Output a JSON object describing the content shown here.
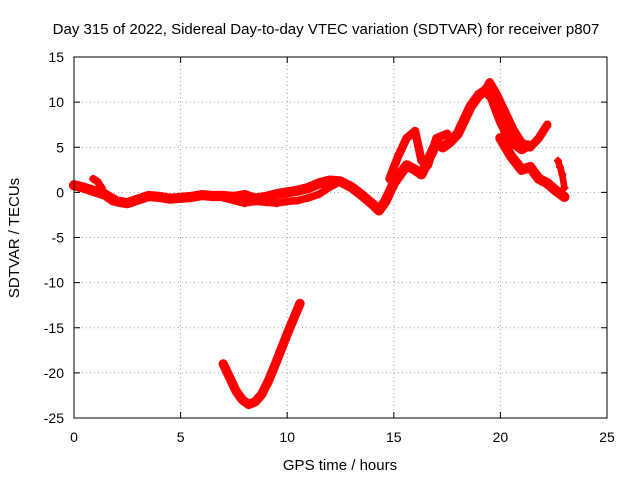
{
  "chart_data": {
    "type": "scatter",
    "title": "Day 315 of 2022, Sidereal Day-to-day VTEC variation (SDTVAR) for receiver p807",
    "xlabel": "GPS time / hours",
    "ylabel": "SDTVAR / TECUs",
    "xlim": [
      0,
      25
    ],
    "ylim": [
      -25,
      15
    ],
    "xticks": [
      0,
      5,
      10,
      15,
      20,
      25
    ],
    "yticks": [
      -25,
      -20,
      -15,
      -10,
      -5,
      0,
      5,
      10,
      15
    ],
    "xtick_labels": [
      "0",
      "5",
      "10",
      "15",
      "20",
      "25"
    ],
    "ytick_labels": [
      "-25",
      "-20",
      "-15",
      "-10",
      "-5",
      "0",
      "5",
      "10",
      "15"
    ],
    "grid": true,
    "color": "#ff0000",
    "series": [
      {
        "name": "main",
        "x": [
          0.0,
          0.5,
          1.0,
          1.5,
          2.0,
          2.5,
          3.0,
          3.5,
          4.0,
          4.5,
          5.0,
          5.5,
          6.0,
          6.5,
          7.0,
          7.5,
          8.0,
          8.5,
          9.0,
          9.5,
          10.0,
          10.5,
          11.0,
          11.5,
          12.0,
          12.5,
          13.0,
          13.5,
          14.0,
          14.3,
          14.6,
          15.0,
          15.3,
          15.6,
          16.0,
          16.3,
          16.6,
          17.0,
          17.3,
          17.6,
          18.0,
          18.3,
          18.6,
          19.0,
          19.3,
          19.6,
          20.0,
          20.3,
          20.6,
          21.0,
          21.3
        ],
        "y": [
          0.8,
          0.5,
          0.1,
          -0.3,
          -1.0,
          -1.2,
          -0.8,
          -0.4,
          -0.5,
          -0.7,
          -0.6,
          -0.5,
          -0.3,
          -0.4,
          -0.4,
          -0.5,
          -0.3,
          -0.7,
          -0.5,
          -0.2,
          0.0,
          0.2,
          0.5,
          1.0,
          1.3,
          1.2,
          0.6,
          -0.3,
          -1.3,
          -2.0,
          -1.0,
          1.0,
          2.0,
          3.0,
          2.5,
          2.0,
          3.5,
          5.5,
          5.0,
          5.5,
          6.5,
          8.0,
          9.5,
          10.8,
          11.3,
          10.5,
          8.0,
          6.5,
          5.5,
          4.8,
          5.2
        ],
        "band": 0.8
      },
      {
        "name": "lower-branch",
        "x": [
          7.0,
          7.5,
          8.0,
          8.5,
          9.0,
          9.5,
          10.0,
          10.5,
          11.0,
          11.5,
          12.0,
          12.5
        ],
        "y": [
          -0.6,
          -0.9,
          -1.2,
          -1.0,
          -1.1,
          -1.2,
          -1.0,
          -0.9,
          -0.6,
          -0.2,
          0.6,
          1.2
        ],
        "band": 0.5
      },
      {
        "name": "upper-spikes-15-17",
        "x": [
          14.8,
          15.2,
          15.6,
          16.0,
          16.3,
          16.6,
          17.0,
          17.5
        ],
        "y": [
          1.5,
          4.0,
          6.0,
          6.8,
          3.5,
          3.0,
          6.0,
          6.5
        ],
        "band": 0.6
      },
      {
        "name": "late-upper",
        "x": [
          19.2,
          19.5,
          19.8,
          20.2,
          20.6,
          21.0,
          21.4,
          21.8,
          22.2
        ],
        "y": [
          11.0,
          12.2,
          11.0,
          9.0,
          7.0,
          5.5,
          5.0,
          6.0,
          7.5
        ],
        "band": 0.6
      },
      {
        "name": "late-lower",
        "x": [
          20.0,
          20.5,
          21.0,
          21.4,
          21.8,
          22.2,
          22.6,
          23.0
        ],
        "y": [
          6.0,
          4.0,
          2.5,
          2.8,
          1.5,
          1.0,
          0.2,
          -0.5
        ],
        "band": 0.8
      },
      {
        "name": "end-spike",
        "x": [
          22.7,
          22.8,
          22.9,
          23.0
        ],
        "y": [
          3.5,
          2.8,
          2.0,
          0.5
        ],
        "band": 0.4
      },
      {
        "name": "early-drop",
        "x": [
          0.9,
          1.1,
          1.3,
          1.5,
          1.8
        ],
        "y": [
          1.5,
          1.2,
          0.5,
          -0.5,
          -1.0
        ],
        "band": 0.5
      },
      {
        "name": "dip-curve",
        "x": [
          7.0,
          7.3,
          7.6,
          7.9,
          8.2,
          8.5,
          8.8,
          9.1,
          9.4,
          9.7,
          10.0,
          10.3,
          10.6
        ],
        "y": [
          -19.0,
          -20.5,
          -22.0,
          -23.0,
          -23.5,
          -23.2,
          -22.4,
          -21.0,
          -19.3,
          -17.5,
          -15.7,
          -14.0,
          -12.3
        ],
        "band": 0.7
      }
    ]
  }
}
